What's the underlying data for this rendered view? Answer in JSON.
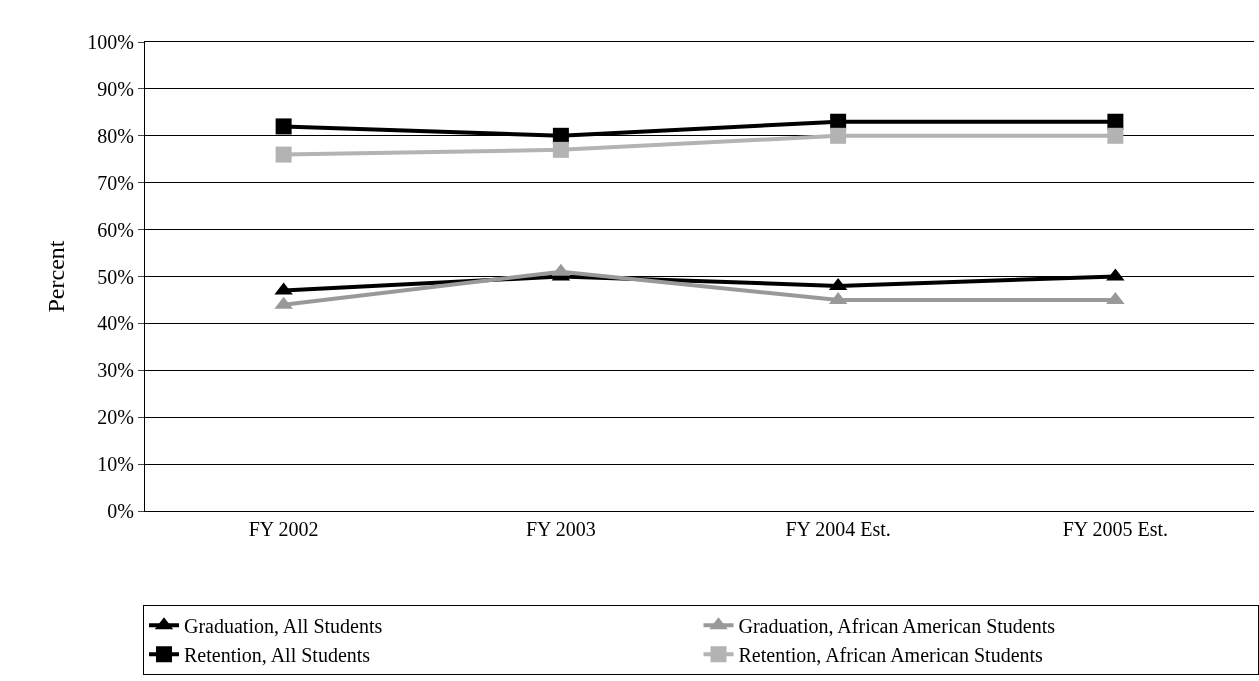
{
  "chart_data": {
    "type": "line",
    "ylabel": "Percent",
    "categories": [
      "FY 2002",
      "FY 2003",
      "FY 2004 Est.",
      "FY 2005 Est."
    ],
    "series": [
      {
        "name": "Graduation, All Students",
        "color": "#000000",
        "marker": "triangle",
        "values": [
          47,
          50,
          48,
          50
        ]
      },
      {
        "name": "Graduation, African American Students",
        "color": "#999999",
        "marker": "triangle",
        "values": [
          44,
          51,
          45,
          45
        ]
      },
      {
        "name": "Retention, All Students",
        "color": "#000000",
        "marker": "square",
        "values": [
          82,
          80,
          83,
          83
        ]
      },
      {
        "name": "Retention, African American Students",
        "color": "#b3b3b3",
        "marker": "square",
        "values": [
          76,
          77,
          80,
          80
        ]
      }
    ],
    "ylim": [
      0,
      100
    ],
    "yticks": [
      {
        "value": 0,
        "label": "0%"
      },
      {
        "value": 10,
        "label": "10%"
      },
      {
        "value": 20,
        "label": "20%"
      },
      {
        "value": 30,
        "label": "30%"
      },
      {
        "value": 40,
        "label": "40%"
      },
      {
        "value": 50,
        "label": "50%"
      },
      {
        "value": 60,
        "label": "60%"
      },
      {
        "value": 70,
        "label": "70%"
      },
      {
        "value": 80,
        "label": "80%"
      },
      {
        "value": 90,
        "label": "90%"
      },
      {
        "value": 100,
        "label": "100%"
      }
    ],
    "grid": "y",
    "legend": "bottom",
    "line_style": "solid"
  }
}
